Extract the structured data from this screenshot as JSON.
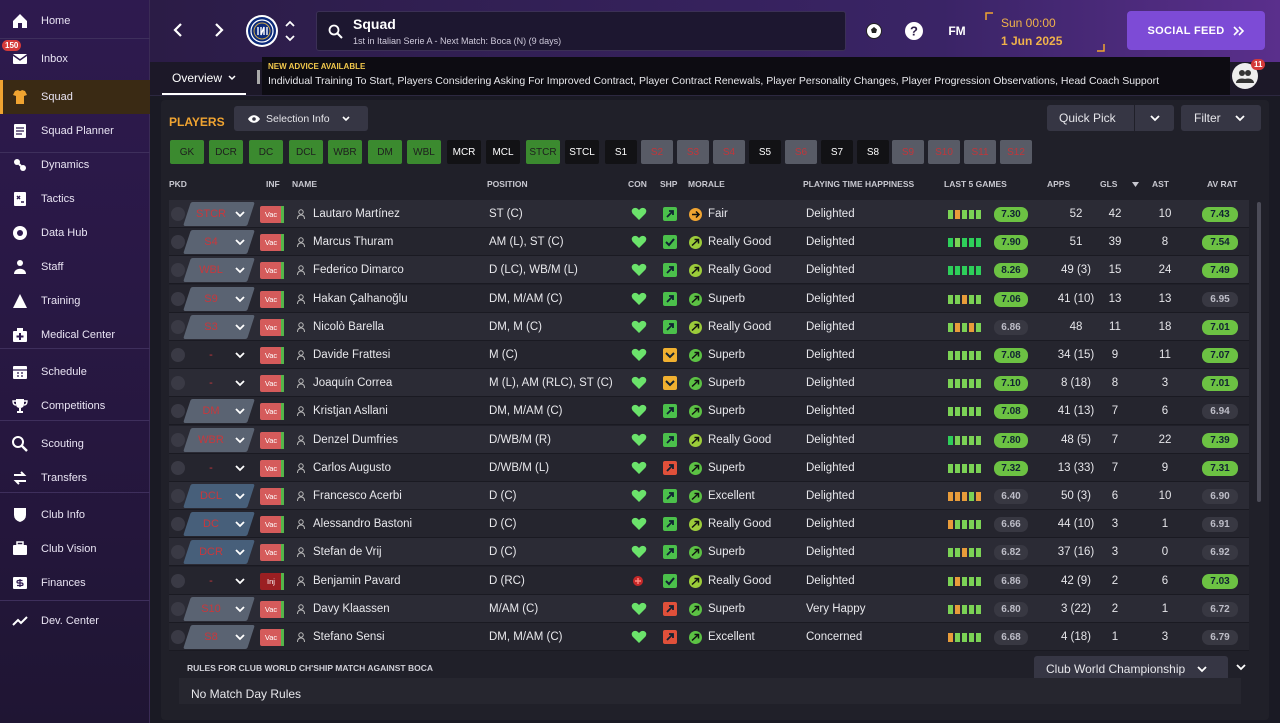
{
  "sidebar": {
    "items": [
      {
        "label": "Home",
        "icon": "home-icon"
      },
      {
        "label": "Inbox",
        "icon": "inbox-icon",
        "badge": "150"
      },
      {
        "label": "Squad",
        "icon": "squad-icon"
      },
      {
        "label": "Squad Planner",
        "icon": "squad-planner-icon"
      },
      {
        "label": "Dynamics",
        "icon": "dynamics-icon"
      },
      {
        "label": "Tactics",
        "icon": "tactics-icon"
      },
      {
        "label": "Data Hub",
        "icon": "data-hub-icon"
      },
      {
        "label": "Staff",
        "icon": "staff-icon"
      },
      {
        "label": "Training",
        "icon": "training-icon"
      },
      {
        "label": "Medical Center",
        "icon": "medical-icon"
      },
      {
        "label": "Schedule",
        "icon": "schedule-icon"
      },
      {
        "label": "Competitions",
        "icon": "trophy-icon"
      },
      {
        "label": "Scouting",
        "icon": "scouting-icon"
      },
      {
        "label": "Transfers",
        "icon": "transfers-icon"
      },
      {
        "label": "Club Info",
        "icon": "club-info-icon"
      },
      {
        "label": "Club Vision",
        "icon": "club-vision-icon"
      },
      {
        "label": "Finances",
        "icon": "finances-icon"
      },
      {
        "label": "Dev. Center",
        "icon": "dev-center-icon"
      }
    ]
  },
  "header": {
    "title": "Squad",
    "subtitle": "1st in Italian Serie A - Next Match: Boca (N) (9 days)",
    "fm_label": "FM",
    "time": "Sun 00:00",
    "date": "1 Jun 2025",
    "social_feed": "SOCIAL FEED",
    "notif_count": "11"
  },
  "subbar": {
    "tab": "Overview",
    "advice_title": "NEW ADVICE AVAILABLE",
    "advice_text": "Individual Training To Start, Players Considering Asking For Improved Contract, Player Contract Renewals, Player Personality Changes, Player Progression Observations, Head Coach Support"
  },
  "toolbar": {
    "players": "PLAYERS",
    "selection_info": "Selection Info",
    "quick_pick": "Quick Pick",
    "filter": "Filter"
  },
  "positions": [
    {
      "label": "GK",
      "style": "green"
    },
    {
      "label": "DCR",
      "style": "green"
    },
    {
      "label": "DC",
      "style": "green"
    },
    {
      "label": "DCL",
      "style": "green"
    },
    {
      "label": "WBR",
      "style": "green"
    },
    {
      "label": "DM",
      "style": "green"
    },
    {
      "label": "WBL",
      "style": "green"
    },
    {
      "label": "MCR",
      "style": "black"
    },
    {
      "label": "MCL",
      "style": "black"
    },
    {
      "label": "STCR",
      "style": "green"
    },
    {
      "label": "STCL",
      "style": "black"
    },
    {
      "label": "S1",
      "style": "black"
    },
    {
      "label": "S2",
      "style": "grey"
    },
    {
      "label": "S3",
      "style": "grey"
    },
    {
      "label": "S4",
      "style": "grey"
    },
    {
      "label": "S5",
      "style": "black"
    },
    {
      "label": "S6",
      "style": "grey"
    },
    {
      "label": "S7",
      "style": "black"
    },
    {
      "label": "S8",
      "style": "black"
    },
    {
      "label": "S9",
      "style": "grey"
    },
    {
      "label": "S10",
      "style": "grey"
    },
    {
      "label": "S11",
      "style": "grey"
    },
    {
      "label": "S12",
      "style": "grey"
    }
  ],
  "columns": {
    "pkd": "PKD",
    "inf": "INF",
    "name": "NAME",
    "position": "POSITION",
    "con": "CON",
    "shp": "SHP",
    "morale": "MORALE",
    "happiness": "PLAYING TIME HAPPINESS",
    "last5": "LAST 5 GAMES",
    "apps": "APPS",
    "gls": "GLS",
    "ast": "AST",
    "avrat": "AV RAT"
  },
  "players": [
    {
      "pkd": "STCR",
      "pkd_style": "grey",
      "inf": "Vac",
      "name": "Lautaro Martínez",
      "position": "ST (C)",
      "con": "heart",
      "shp": "up",
      "morale": "Fair",
      "morale_color": "#f0a431",
      "happiness": "Delighted",
      "form": [
        "#7bd255",
        "#e89c3a",
        "#7bd255",
        "#7bd255",
        "#7bd255"
      ],
      "last5": "7.30",
      "last5_green": true,
      "apps": "52",
      "gls": "42",
      "ast": "10",
      "avrat": "7.43",
      "avrat_green": true
    },
    {
      "pkd": "S4",
      "pkd_style": "grey",
      "inf": "Vac",
      "name": "Marcus Thuram",
      "position": "AM (L), ST (C)",
      "con": "heart",
      "shp": "tick",
      "morale": "Really Good",
      "morale_color": "#9ccc3a",
      "happiness": "Delighted",
      "form": [
        "#2ecf5a",
        "#7bd255",
        "#2ecf5a",
        "#2ecf5a",
        "#2ecf5a"
      ],
      "last5": "7.90",
      "last5_green": true,
      "apps": "51",
      "gls": "39",
      "ast": "8",
      "avrat": "7.54",
      "avrat_green": true
    },
    {
      "pkd": "WBL",
      "pkd_style": "grey",
      "inf": "Vac",
      "name": "Federico Dimarco",
      "position": "D (LC), WB/M (L)",
      "con": "heart",
      "shp": "up",
      "morale": "Really Good",
      "morale_color": "#9ccc3a",
      "happiness": "Delighted",
      "form": [
        "#2ecf5a",
        "#2ecf5a",
        "#2ecf5a",
        "#2ecf5a",
        "#2ecf5a"
      ],
      "last5": "8.26",
      "last5_green": true,
      "apps": "49 (3)",
      "gls": "15",
      "ast": "24",
      "avrat": "7.49",
      "avrat_green": true
    },
    {
      "pkd": "S9",
      "pkd_style": "grey",
      "inf": "Vac",
      "name": "Hakan Çalhanoğlu",
      "position": "DM, M/AM (C)",
      "con": "heart",
      "shp": "up",
      "morale": "Superb",
      "morale_color": "#5cc244",
      "happiness": "Delighted",
      "form": [
        "#7bd255",
        "#7bd255",
        "#e89c3a",
        "#7bd255",
        "#7bd255"
      ],
      "last5": "7.06",
      "last5_green": true,
      "apps": "41 (10)",
      "gls": "13",
      "ast": "13",
      "avrat": "6.95",
      "avrat_green": false
    },
    {
      "pkd": "S3",
      "pkd_style": "grey",
      "inf": "Vac",
      "name": "Nicolò Barella",
      "position": "DM, M (C)",
      "con": "heart",
      "shp": "up",
      "morale": "Really Good",
      "morale_color": "#9ccc3a",
      "happiness": "Delighted",
      "form": [
        "#7bd255",
        "#e89c3a",
        "#7bd255",
        "#e89c3a",
        "#7bd255"
      ],
      "last5": "6.86",
      "last5_green": false,
      "apps": "48",
      "gls": "11",
      "ast": "18",
      "avrat": "7.01",
      "avrat_green": true
    },
    {
      "pkd": "-",
      "pkd_style": "none",
      "inf": "Vac",
      "name": "Davide Frattesi",
      "position": "M (C)",
      "con": "heart",
      "shp": "down",
      "morale": "Superb",
      "morale_color": "#5cc244",
      "happiness": "Delighted",
      "form": [
        "#7bd255",
        "#7bd255",
        "#7bd255",
        "#7bd255",
        "#7bd255"
      ],
      "last5": "7.08",
      "last5_green": true,
      "apps": "34 (15)",
      "gls": "9",
      "ast": "11",
      "avrat": "7.07",
      "avrat_green": true
    },
    {
      "pkd": "-",
      "pkd_style": "none",
      "inf": "Vac",
      "name": "Joaquín Correa",
      "position": "M (L), AM (RLC), ST (C)",
      "con": "heart",
      "shp": "down",
      "morale": "Superb",
      "morale_color": "#5cc244",
      "happiness": "Delighted",
      "form": [
        "#7bd255",
        "#7bd255",
        "#7bd255",
        "#7bd255",
        "#7bd255"
      ],
      "last5": "7.10",
      "last5_green": true,
      "apps": "8 (18)",
      "gls": "8",
      "ast": "3",
      "avrat": "7.01",
      "avrat_green": true
    },
    {
      "pkd": "DM",
      "pkd_style": "grey",
      "inf": "Vac",
      "name": "Kristjan Asllani",
      "position": "DM, M/AM (C)",
      "con": "heart",
      "shp": "up",
      "morale": "Superb",
      "morale_color": "#5cc244",
      "happiness": "Delighted",
      "form": [
        "#7bd255",
        "#7bd255",
        "#7bd255",
        "#7bd255",
        "#7bd255"
      ],
      "last5": "7.08",
      "last5_green": true,
      "apps": "41 (13)",
      "gls": "7",
      "ast": "6",
      "avrat": "6.94",
      "avrat_green": false
    },
    {
      "pkd": "WBR",
      "pkd_style": "grey",
      "inf": "Vac",
      "name": "Denzel Dumfries",
      "position": "D/WB/M (R)",
      "con": "heart",
      "shp": "up",
      "morale": "Really Good",
      "morale_color": "#9ccc3a",
      "happiness": "Delighted",
      "form": [
        "#2ecf5a",
        "#7bd255",
        "#7bd255",
        "#7bd255",
        "#7bd255"
      ],
      "last5": "7.80",
      "last5_green": true,
      "apps": "48 (5)",
      "gls": "7",
      "ast": "22",
      "avrat": "7.39",
      "avrat_green": true
    },
    {
      "pkd": "-",
      "pkd_style": "none",
      "inf": "Vac",
      "name": "Carlos Augusto",
      "position": "D/WB/M (L)",
      "con": "heart",
      "shp": "red",
      "morale": "Superb",
      "morale_color": "#5cc244",
      "happiness": "Delighted",
      "form": [
        "#7bd255",
        "#7bd255",
        "#7bd255",
        "#7bd255",
        "#7bd255"
      ],
      "last5": "7.32",
      "last5_green": true,
      "apps": "13 (33)",
      "gls": "7",
      "ast": "9",
      "avrat": "7.31",
      "avrat_green": true
    },
    {
      "pkd": "DCL",
      "pkd_style": "blue",
      "inf": "Vac",
      "name": "Francesco Acerbi",
      "position": "D (C)",
      "con": "heart",
      "shp": "up",
      "morale": "Excellent",
      "morale_color": "#5cc244",
      "happiness": "Delighted",
      "form": [
        "#e89c3a",
        "#e89c3a",
        "#e89c3a",
        "#7bd255",
        "#e89c3a"
      ],
      "last5": "6.40",
      "last5_green": false,
      "apps": "50 (3)",
      "gls": "6",
      "ast": "10",
      "avrat": "6.90",
      "avrat_green": false
    },
    {
      "pkd": "DC",
      "pkd_style": "blue",
      "inf": "Vac",
      "name": "Alessandro Bastoni",
      "position": "D (C)",
      "con": "heart",
      "shp": "up",
      "morale": "Really Good",
      "morale_color": "#9ccc3a",
      "happiness": "Delighted",
      "form": [
        "#e89c3a",
        "#7bd255",
        "#7bd255",
        "#7bd255",
        "#7bd255"
      ],
      "last5": "6.66",
      "last5_green": false,
      "apps": "44 (10)",
      "gls": "3",
      "ast": "1",
      "avrat": "6.91",
      "avrat_green": false
    },
    {
      "pkd": "DCR",
      "pkd_style": "blue",
      "inf": "Vac",
      "name": "Stefan de Vrij",
      "position": "D (C)",
      "con": "heart",
      "shp": "up",
      "morale": "Superb",
      "morale_color": "#5cc244",
      "happiness": "Delighted",
      "form": [
        "#7bd255",
        "#7bd255",
        "#e89c3a",
        "#7bd255",
        "#7bd255"
      ],
      "last5": "6.82",
      "last5_green": false,
      "apps": "37 (16)",
      "gls": "3",
      "ast": "0",
      "avrat": "6.92",
      "avrat_green": false
    },
    {
      "pkd": "-",
      "pkd_style": "none",
      "inf": "Inj",
      "name": "Benjamin Pavard",
      "position": "D (RC)",
      "con": "injury",
      "shp": "tick",
      "morale": "Really Good",
      "morale_color": "#9ccc3a",
      "happiness": "Delighted",
      "form": [
        "#7bd255",
        "#e89c3a",
        "#7bd255",
        "#7bd255",
        "#7bd255"
      ],
      "last5": "6.86",
      "last5_green": false,
      "apps": "42 (9)",
      "gls": "2",
      "ast": "6",
      "avrat": "7.03",
      "avrat_green": true
    },
    {
      "pkd": "S10",
      "pkd_style": "grey",
      "inf": "Vac",
      "name": "Davy Klaassen",
      "position": "M/AM (C)",
      "con": "heart",
      "shp": "red",
      "morale": "Superb",
      "morale_color": "#5cc244",
      "happiness": "Very Happy",
      "form": [
        "#7bd255",
        "#e89c3a",
        "#7bd255",
        "#7bd255",
        "#7bd255"
      ],
      "last5": "6.80",
      "last5_green": false,
      "apps": "3 (22)",
      "gls": "2",
      "ast": "1",
      "avrat": "6.72",
      "avrat_green": false
    },
    {
      "pkd": "S8",
      "pkd_style": "grey",
      "inf": "Vac",
      "name": "Stefano Sensi",
      "position": "DM, M/AM (C)",
      "con": "heart",
      "shp": "red",
      "morale": "Excellent",
      "morale_color": "#5cc244",
      "happiness": "Concerned",
      "form": [
        "#e89c3a",
        "#7bd255",
        "#7bd255",
        "#7bd255",
        "#7bd255"
      ],
      "last5": "6.68",
      "last5_green": false,
      "apps": "4 (18)",
      "gls": "1",
      "ast": "3",
      "avrat": "6.79",
      "avrat_green": false
    }
  ],
  "rules": {
    "title": "RULES FOR CLUB WORLD CH'SHIP MATCH AGAINST BOCA",
    "select": "Club World Championship",
    "text": "No Match Day Rules"
  }
}
